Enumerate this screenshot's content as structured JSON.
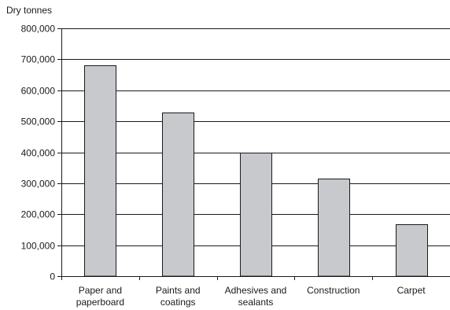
{
  "chart_data": {
    "type": "bar",
    "ylabel": "Dry tonnes",
    "xlabel": "",
    "title": "",
    "categories": [
      [
        "Paper and",
        "paperboard"
      ],
      [
        "Paints and",
        "coatings"
      ],
      [
        "Adhesives and",
        "sealants"
      ],
      [
        "Construction"
      ],
      [
        "Carpet"
      ]
    ],
    "values": [
      680000,
      527000,
      398000,
      315000,
      167000
    ],
    "ylim": [
      0,
      800000
    ],
    "yticks": [
      0,
      100000,
      200000,
      300000,
      400000,
      500000,
      600000,
      700000,
      800000
    ],
    "ytick_labels": [
      "0",
      "100,000",
      "200,000",
      "300,000",
      "400,000",
      "500,000",
      "600,000",
      "700,000",
      "800,000"
    ],
    "grid": true,
    "legend": "none",
    "bar_color": "#c8c9cc",
    "bar_edge_color": "#1a1a1a"
  }
}
